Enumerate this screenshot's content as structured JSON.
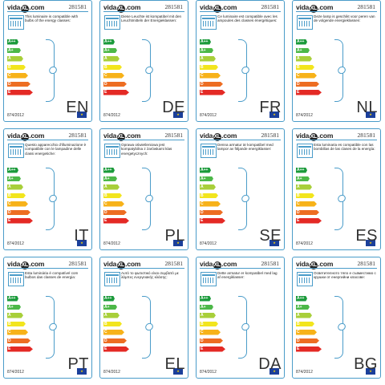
{
  "brand": "vidaXL.com",
  "code": "281581",
  "regulation": "874/2012",
  "eu_flag_label": "EU",
  "energy_classes": [
    "A++",
    "A+",
    "A",
    "B",
    "C",
    "D",
    "E"
  ],
  "class_colors": [
    "#1a9a3a",
    "#4cb848",
    "#a8cf3a",
    "#f2e51d",
    "#f7b219",
    "#ed6d22",
    "#e42a25"
  ],
  "accent_color": "#4a9cc9",
  "labels": [
    {
      "lang": "EN",
      "text": "This luminaire is compatible with bulbs of the energy classes:"
    },
    {
      "lang": "DE",
      "text": "Diese Leuchte ist kompatibel mit den Leuchtmitteln der Energieklassen:"
    },
    {
      "lang": "FR",
      "text": "Ce luminaire est compatible avec les ampoules des classes énergétiques:"
    },
    {
      "lang": "NL",
      "text": "Deze lamp is geschikt voor peren van de volgende energieklassen:"
    },
    {
      "lang": "IT",
      "text": "Questo apparecchio d'illuminazione è compatibile con le lampadine delle classi energetiche:"
    },
    {
      "lang": "PL",
      "text": "Oprawa oświetleniowa jest kompatybilna z żarówkami klas energetycznych:"
    },
    {
      "lang": "SE",
      "text": "Denna armatur är kompatibel med lampor av följande energiklasser:"
    },
    {
      "lang": "ES",
      "text": "Esta luminaria es compatible con las bombillas de las clases de la energía:"
    },
    {
      "lang": "PT",
      "text": "Esta luminária é compatível com bulbos das classes de energia:"
    },
    {
      "lang": "EL",
      "text": "Αυτό το φωτιστικό είναι συμβατό με λάμπες ενεργειακής κλάσης:"
    },
    {
      "lang": "DA",
      "text": "Dette armatur er kompatibel med lag af energiklasser:"
    },
    {
      "lang": "BG",
      "text": "Осветителното тяло е съвместимо с крушки от енергийни класове:"
    }
  ]
}
